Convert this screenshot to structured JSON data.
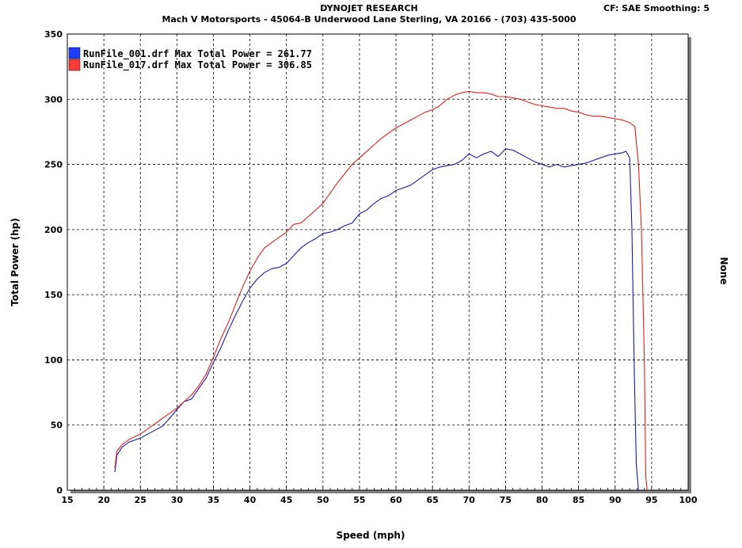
{
  "header": {
    "company": "DYNOJET RESEARCH",
    "shop": "Mach V Motorsports - 45064-B Underwood Lane   Sterling, VA  20166 - (703) 435-5000",
    "settings": "CF: SAE  Smoothing: 5"
  },
  "chart_data": {
    "type": "line",
    "xlabel": "Speed (mph)",
    "ylabel": "Total Power (hp)",
    "y2label": "None",
    "xlim": [
      15,
      100
    ],
    "ylim": [
      0,
      350
    ],
    "xticks": [
      15,
      20,
      25,
      30,
      35,
      40,
      45,
      50,
      55,
      60,
      65,
      70,
      75,
      80,
      85,
      90,
      95,
      100
    ],
    "yticks": [
      0,
      50,
      100,
      150,
      200,
      250,
      300,
      350
    ],
    "grid": true,
    "legend_position": "top-left",
    "series": [
      {
        "name": "RunFile_001.drf Max Total Power = 261.77",
        "color": "#1a1aa8",
        "swatch": "#1f3cff",
        "x": [
          21.5,
          21.8,
          22.5,
          23.5,
          25,
          26,
          27,
          28,
          29,
          30,
          31,
          32,
          33,
          34,
          35,
          36,
          37,
          38,
          39,
          40,
          41,
          42,
          43,
          44,
          45,
          46,
          47,
          48,
          49,
          50,
          51,
          52,
          53,
          54,
          55,
          56,
          57,
          58,
          59,
          60,
          61,
          62,
          63,
          64,
          65,
          66,
          67,
          68,
          69,
          70,
          71,
          72,
          73,
          74,
          75,
          76,
          77,
          78,
          79,
          80,
          81,
          82,
          83,
          84,
          85,
          86,
          87,
          88,
          89,
          90,
          91,
          91.5,
          92,
          92.3,
          92.6,
          92.9,
          93.2
        ],
        "y": [
          14,
          27,
          33,
          37,
          40,
          43,
          46,
          49,
          55,
          62,
          68,
          70,
          78,
          86,
          98,
          109,
          122,
          134,
          145,
          155,
          162,
          167,
          170,
          171,
          174,
          180,
          186,
          190,
          193,
          197,
          198,
          200,
          203,
          205,
          212,
          215,
          220,
          224,
          226,
          230,
          232,
          234,
          238,
          242,
          246,
          248,
          249,
          250,
          253,
          258,
          255,
          258,
          260,
          256,
          262,
          261,
          258,
          255,
          252,
          250,
          248,
          250,
          248,
          249,
          250,
          251,
          253,
          255,
          257,
          258,
          259,
          260,
          255,
          200,
          100,
          20,
          0
        ]
      },
      {
        "name": "RunFile_017.drf Max Total Power = 306.85",
        "color": "#e02020",
        "swatch": "#ff3b3b",
        "x": [
          21.5,
          21.8,
          22.5,
          23.5,
          25,
          26,
          27,
          28,
          29,
          30,
          31,
          32,
          33,
          34,
          35,
          36,
          37,
          38,
          39,
          40,
          41,
          42,
          43,
          44,
          45,
          46,
          47,
          48,
          49,
          50,
          51,
          52,
          53,
          54,
          55,
          56,
          57,
          58,
          59,
          60,
          61,
          62,
          63,
          64,
          65,
          66,
          67,
          68,
          69,
          70,
          71,
          72,
          73,
          74,
          75,
          76,
          77,
          78,
          79,
          80,
          81,
          82,
          83,
          84,
          85,
          86,
          87,
          88,
          89,
          90,
          91,
          92,
          92.7,
          93.2,
          93.6,
          94,
          94.2,
          94.4
        ],
        "y": [
          17,
          30,
          35,
          39,
          43,
          47,
          51,
          55,
          59,
          63,
          68,
          73,
          80,
          89,
          102,
          116,
          128,
          142,
          156,
          168,
          178,
          186,
          190,
          194,
          198,
          204,
          205,
          210,
          215,
          220,
          228,
          236,
          243,
          250,
          255,
          260,
          265,
          270,
          274,
          278,
          281,
          284,
          287,
          290,
          292,
          295,
          300,
          303,
          305,
          306,
          305,
          305,
          304,
          302,
          302,
          301,
          300,
          298,
          296,
          295,
          294,
          293,
          293,
          291,
          290,
          288,
          287,
          287,
          286,
          285,
          284,
          282,
          279,
          250,
          200,
          100,
          10,
          0
        ]
      }
    ]
  }
}
